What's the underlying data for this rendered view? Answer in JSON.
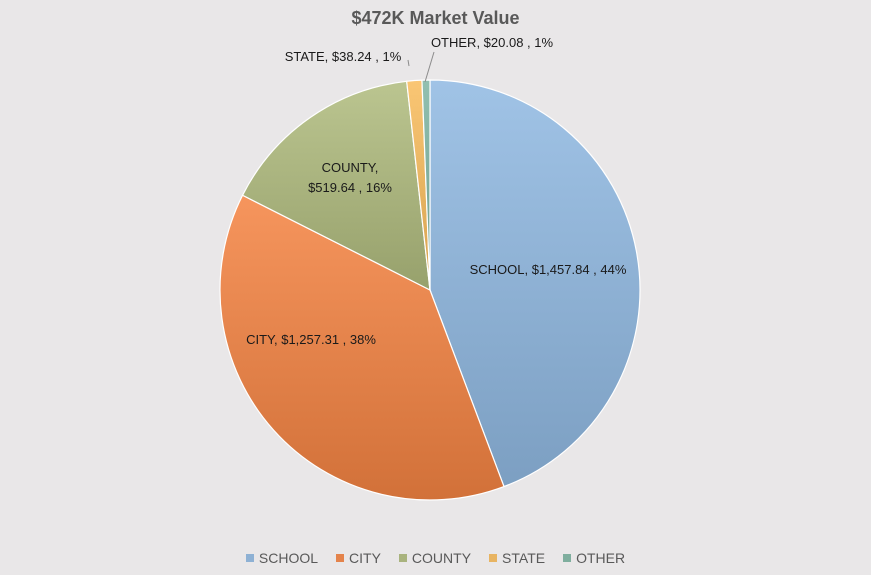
{
  "chart_data": {
    "type": "pie",
    "title": "$472K Market Value",
    "slices": [
      {
        "name": "SCHOOL",
        "value": 1457.84,
        "percent": 44,
        "color": "#8eb1d4",
        "label": "SCHOOL, $1,457.84 , 44%"
      },
      {
        "name": "CITY",
        "value": 1257.31,
        "percent": 38,
        "color": "#e4834b",
        "label": "CITY, $1,257.31 , 38%"
      },
      {
        "name": "COUNTY",
        "value": 519.64,
        "percent": 16,
        "color": "#a9b37e",
        "label_lines": [
          "COUNTY,",
          "$519.64 , 16%"
        ]
      },
      {
        "name": "STATE",
        "value": 38.24,
        "percent": 1,
        "color": "#e8b462",
        "label": "STATE, $38.24 , 1%"
      },
      {
        "name": "OTHER",
        "value": 20.08,
        "percent": 1,
        "color": "#7fae9e",
        "label": "OTHER, $20.08 , 1%"
      }
    ],
    "legend_position": "bottom"
  }
}
